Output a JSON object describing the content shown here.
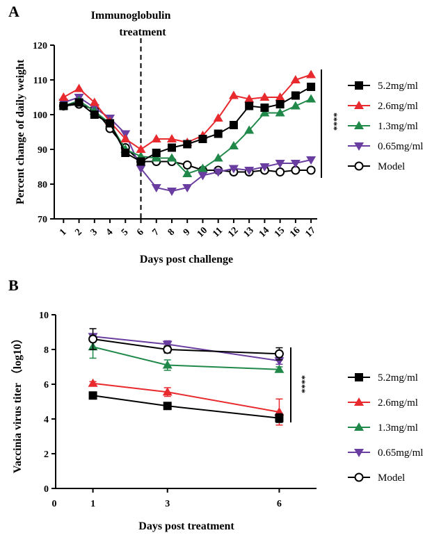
{
  "colors": {
    "5.2mg/ml": "#000000",
    "2.6mg/ml": "#e8292d",
    "1.3mg/ml": "#20894a",
    "0.65mg/ml": "#6a3ea0",
    "Model": "#000000"
  },
  "chart_data": [
    {
      "type": "line",
      "panel_label": "A",
      "xlabel": "Days post challenge",
      "ylabel": "Percent change of daily weight",
      "ylim": [
        70,
        120
      ],
      "yticks": [
        70,
        80,
        90,
        100,
        110,
        120
      ],
      "x": [
        1,
        2,
        3,
        4,
        5,
        6,
        7,
        8,
        9,
        10,
        11,
        12,
        13,
        14,
        15,
        16,
        17
      ],
      "annotation": {
        "text_line1": "Immunoglobulin",
        "text_line2": "treatment",
        "x": 6
      },
      "significance": "****",
      "legend_position": "right",
      "series": [
        {
          "name": "5.2mg/ml",
          "marker": "square",
          "values": [
            102.5,
            103.5,
            100,
            97.5,
            89,
            86.5,
            89,
            90.5,
            91.5,
            93,
            94.5,
            97,
            102.5,
            102,
            103,
            105.5,
            108
          ]
        },
        {
          "name": "2.6mg/ml",
          "marker": "triangle-up",
          "values": [
            105,
            107.5,
            103.5,
            98,
            93,
            90,
            93,
            93,
            92,
            94,
            99,
            105.5,
            104.5,
            105,
            105,
            110,
            111.5
          ]
        },
        {
          "name": "1.3mg/ml",
          "marker": "triangle-up",
          "values": [
            102.5,
            104,
            101,
            97.5,
            90,
            88,
            87.5,
            87.5,
            83,
            84.5,
            87.5,
            91,
            95.5,
            100.5,
            100.5,
            102.5,
            104.5
          ]
        },
        {
          "name": "0.65mg/ml",
          "marker": "triangle-down",
          "values": [
            103.5,
            105,
            102,
            99,
            94.5,
            84.5,
            79,
            78,
            79,
            82.5,
            83.5,
            84.5,
            84,
            85,
            86,
            86,
            87
          ]
        },
        {
          "name": "Model",
          "marker": "circle-open",
          "values": [
            102.5,
            103,
            101.5,
            96,
            90.5,
            86.5,
            86.5,
            86.5,
            85.5,
            84,
            84,
            83.5,
            83.5,
            84,
            83.5,
            84,
            84
          ]
        }
      ]
    },
    {
      "type": "line",
      "panel_label": "B",
      "xlabel": "Days post treatment",
      "ylabel": "Vaccinia virus titer （log10）",
      "ylim": [
        0,
        10
      ],
      "yticks": [
        0,
        2,
        4,
        6,
        8,
        10
      ],
      "xlim": [
        0,
        7
      ],
      "xticks": [
        0,
        1,
        3,
        6
      ],
      "x": [
        1,
        3,
        6
      ],
      "significance": "****",
      "legend_position": "right",
      "series": [
        {
          "name": "5.2mg/ml",
          "marker": "square",
          "values": [
            5.35,
            4.75,
            4.05
          ],
          "errors": [
            0.1,
            0.1,
            0.25
          ]
        },
        {
          "name": "2.6mg/ml",
          "marker": "triangle-up",
          "values": [
            6.05,
            5.55,
            4.4
          ],
          "errors": [
            0.1,
            0.25,
            0.75
          ]
        },
        {
          "name": "1.3mg/ml",
          "marker": "triangle-up",
          "values": [
            8.15,
            7.1,
            6.85
          ],
          "errors": [
            0.65,
            0.3,
            0.15
          ]
        },
        {
          "name": "0.65mg/ml",
          "marker": "triangle-down",
          "values": [
            8.75,
            8.3,
            7.35
          ],
          "errors": [
            0.15,
            0.2,
            0.2
          ]
        },
        {
          "name": "Model",
          "marker": "circle-open",
          "values": [
            8.6,
            8.0,
            7.75
          ],
          "errors": [
            0.6,
            0.2,
            0.35
          ]
        }
      ]
    }
  ]
}
